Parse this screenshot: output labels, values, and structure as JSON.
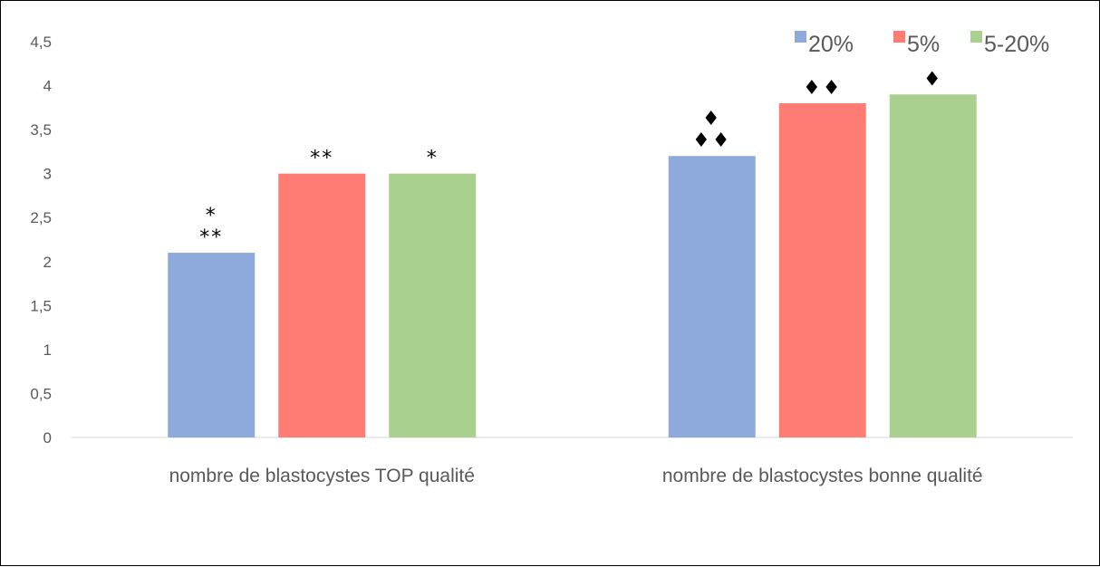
{
  "chart_data": {
    "type": "bar",
    "categories": [
      "nombre de blastocystes TOP qualité",
      "nombre de blastocystes bonne qualité"
    ],
    "series": [
      {
        "name": "20%",
        "color": "#8EA9DB",
        "values": [
          2.1,
          3.2
        ]
      },
      {
        "name": "5%",
        "color": "#FF7C74",
        "values": [
          3.0,
          3.8
        ]
      },
      {
        "name": "5-20%",
        "color": "#A9D08E",
        "values": [
          3.0,
          3.9
        ]
      }
    ],
    "ylim": [
      0,
      4.5
    ],
    "yticks": [
      "0",
      "0,5",
      "1",
      "1,5",
      "2",
      "2,5",
      "3",
      "3,5",
      "4",
      "4,5"
    ],
    "title": "",
    "xlabel": "",
    "ylabel": "",
    "legend": "top-right",
    "grid": false,
    "annotations": [
      [
        "*\n**",
        "**",
        "*"
      ],
      [
        "♦\n♦♦",
        "♦♦",
        "♦"
      ]
    ]
  }
}
